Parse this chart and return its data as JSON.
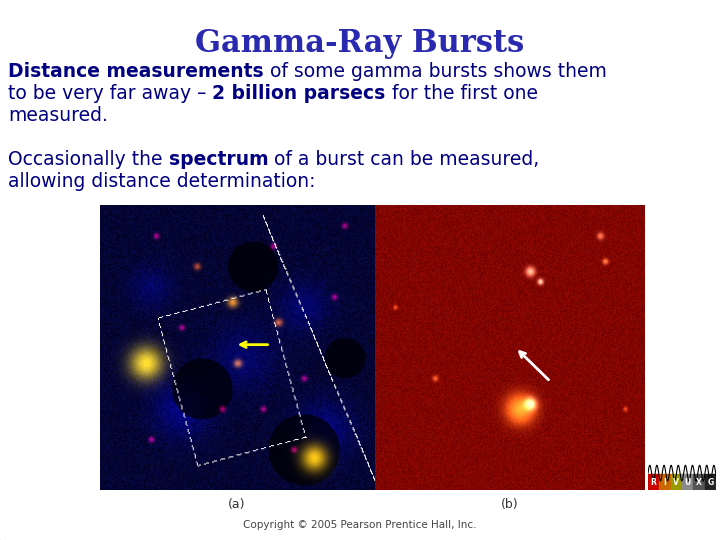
{
  "title": "Gamma-Ray Bursts",
  "title_color": "#2A2AB0",
  "title_fontsize": 22,
  "bg_color": "#FFFFFF",
  "body_fontsize": 13.5,
  "body_color": "#000080",
  "para1_lines": [
    [
      {
        "text": "Distance measurements",
        "bold": true
      },
      {
        "text": " of some gamma bursts shows them",
        "bold": false
      }
    ],
    [
      {
        "text": "to be very far away – ",
        "bold": false
      },
      {
        "text": "2 billion parsecs",
        "bold": true
      },
      {
        "text": " for the first one",
        "bold": false
      }
    ],
    [
      {
        "text": "measured.",
        "bold": false
      }
    ]
  ],
  "para2_lines": [
    [
      {
        "text": "Occasionally the ",
        "bold": false
      },
      {
        "text": "spectrum",
        "bold": true
      },
      {
        "text": " of a burst can be measured,",
        "bold": false
      }
    ],
    [
      {
        "text": "allowing distance determination:",
        "bold": false
      }
    ]
  ],
  "label_a": "(a)",
  "label_b": "(b)",
  "copyright": "Copyright © 2005 Pearson Prentice Hall, Inc.",
  "label_color": "#333333",
  "label_fontsize": 9,
  "copyright_fontsize": 7.5,
  "rivuxg_colors": [
    "#CC0000",
    "#CC6600",
    "#999900",
    "#888888",
    "#555555",
    "#222222"
  ],
  "rivuxg_labels": [
    "R",
    "I",
    "V",
    "U",
    "X",
    "G"
  ]
}
